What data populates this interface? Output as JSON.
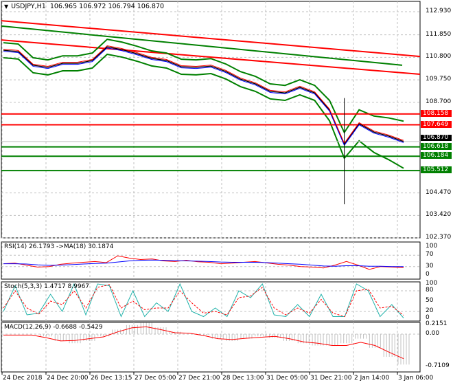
{
  "header": {
    "symbol": "USDJPY,H1",
    "ohlc": "106.965 106.972 106.794 106.870"
  },
  "colors": {
    "up": "#ff0000",
    "level_green": "#008000",
    "rsi": "#ff0000",
    "rsi_ma": "#0000ff",
    "stoch_main": "#20b2aa",
    "stoch_signal": "#ff0000",
    "macd_hist": "#c0c0c0",
    "macd_signal": "#ff0000",
    "price_tag": "#000000"
  },
  "chart_data": [
    {
      "type": "line",
      "title": "USDJPY,H1",
      "ylim": [
        102.37,
        112.93
      ],
      "y_ticks": [
        "112.930",
        "111.850",
        "110.800",
        "109.750",
        "108.700",
        "104.470",
        "103.420",
        "102.370"
      ],
      "x_ticks": [
        "24 Dec 2018",
        "24 Dec 20:00",
        "26 Dec 13:15",
        "27 Dec 05:00",
        "27 Dec 21:00",
        "28 Dec 13:00",
        "31 Dec 05:00",
        "31 Dec 21:00",
        "2 Jan 14:00",
        "3 Jan 06:00"
      ],
      "close": [
        111.13,
        111.07,
        110.43,
        110.33,
        110.52,
        110.52,
        110.65,
        111.29,
        111.16,
        110.97,
        110.75,
        110.65,
        110.36,
        110.33,
        110.39,
        110.14,
        109.78,
        109.56,
        109.21,
        109.14,
        109.4,
        109.14,
        108.34,
        106.74,
        107.7,
        107.31,
        107.12,
        106.87
      ],
      "spike_low": 103.94,
      "current_price": "106.870",
      "resistance_levels": [
        "108.158",
        "107.649"
      ],
      "support_levels": [
        "106.618",
        "106.184",
        "105.512"
      ]
    },
    {
      "type": "line",
      "title": "RSI(14) 26.1793  ->MA(18) 30.1874",
      "ylim": [
        0,
        100
      ],
      "y_ticks": [
        "100",
        "70",
        "30",
        "0"
      ],
      "series": [
        {
          "values": [
            40,
            42,
            35,
            28,
            30,
            38,
            42,
            45,
            48,
            44,
            68,
            60,
            55,
            57,
            50,
            48,
            52,
            47,
            45,
            40,
            42,
            45,
            48,
            43,
            38,
            35,
            30,
            28,
            25,
            35,
            48,
            35,
            20,
            30,
            28,
            26
          ]
        },
        {
          "values": [
            40,
            40,
            39,
            36,
            34,
            35,
            37,
            39,
            41,
            42,
            46,
            50,
            52,
            53,
            52,
            51,
            50,
            49,
            48,
            46,
            45,
            45,
            45,
            44,
            42,
            40,
            38,
            35,
            32,
            31,
            33,
            33,
            31,
            31,
            30,
            30
          ]
        }
      ]
    },
    {
      "type": "line",
      "title": "Stoch(5,3,3) 1.4717 8.9967",
      "ylim": [
        0,
        100
      ],
      "y_ticks": [
        "100",
        "80",
        "50",
        "20",
        "0"
      ],
      "series": [
        {
          "values": [
            20,
            95,
            10,
            15,
            70,
            20,
            100,
            10,
            100,
            95,
            5,
            80,
            5,
            45,
            20,
            100,
            20,
            5,
            30,
            5,
            80,
            60,
            100,
            10,
            5,
            40,
            5,
            70,
            5,
            5,
            100,
            80,
            5,
            40,
            1
          ]
        },
        {
          "values": [
            30,
            80,
            30,
            12,
            50,
            40,
            80,
            30,
            90,
            98,
            30,
            50,
            25,
            30,
            30,
            80,
            45,
            15,
            20,
            10,
            60,
            65,
            90,
            30,
            10,
            30,
            15,
            55,
            15,
            5,
            80,
            85,
            30,
            35,
            9
          ]
        }
      ]
    },
    {
      "type": "bar",
      "title": "MACD(12,26,9) -0.6688 -0.5429",
      "ylim": [
        -0.7109,
        0.2151
      ],
      "y_ticks": [
        "0.2151",
        "0.00",
        "-0.7109"
      ],
      "series": [
        {
          "name": "histogram",
          "values": [
            0,
            0,
            0,
            -0.05,
            -0.15,
            -0.2,
            -0.15,
            -0.05,
            0.1,
            0.2,
            0.25,
            0.15,
            0.05,
            0,
            -0.02,
            -0.1,
            -0.15,
            -0.1,
            -0.05,
            -0.08,
            -0.15,
            -0.2,
            -0.25,
            -0.25,
            -0.2,
            -0.1,
            -0.3,
            -0.5,
            -0.67
          ]
        },
        {
          "name": "signal",
          "values": [
            -0.02,
            -0.02,
            -0.02,
            -0.08,
            -0.15,
            -0.14,
            -0.1,
            -0.06,
            0.05,
            0.14,
            0.16,
            0.1,
            0.03,
            0.02,
            -0.03,
            -0.1,
            -0.12,
            -0.09,
            -0.07,
            -0.05,
            -0.1,
            -0.17,
            -0.2,
            -0.25,
            -0.25,
            -0.18,
            -0.25,
            -0.4,
            -0.54
          ]
        }
      ]
    }
  ]
}
